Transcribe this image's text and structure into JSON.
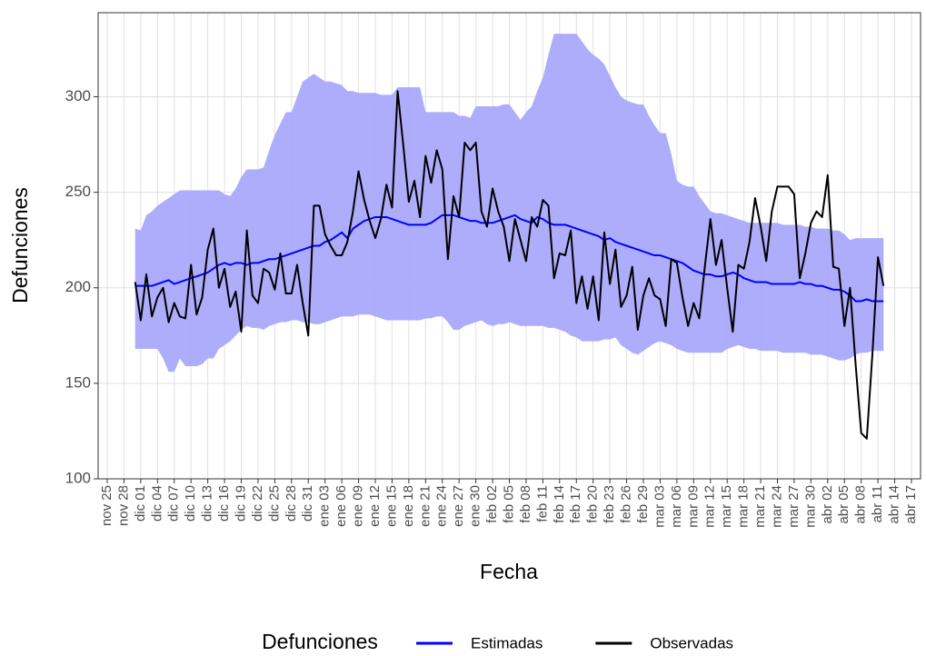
{
  "chart_data": {
    "type": "line",
    "y_label": "Defunciones",
    "x_label": "Fecha",
    "legend_title": "Defunciones",
    "legend_position": "bottom",
    "grid": true,
    "ylim": [
      100,
      344
    ],
    "yticks": [
      100,
      150,
      200,
      250,
      300
    ],
    "categories": [
      "nov 25",
      null,
      null,
      "nov 28",
      null,
      null,
      "dic 01",
      null,
      null,
      "dic 04",
      null,
      null,
      "dic 07",
      null,
      null,
      "dic 10",
      null,
      null,
      "dic 13",
      null,
      null,
      "dic 16",
      null,
      null,
      "dic 19",
      null,
      null,
      "dic 22",
      null,
      null,
      "dic 25",
      null,
      null,
      "dic 28",
      null,
      null,
      "dic 31",
      null,
      null,
      "ene 03",
      null,
      null,
      "ene 06",
      null,
      null,
      "ene 09",
      null,
      null,
      "ene 12",
      null,
      null,
      "ene 15",
      null,
      null,
      "ene 18",
      null,
      null,
      "ene 21",
      null,
      null,
      "ene 24",
      null,
      null,
      "ene 27",
      null,
      null,
      "ene 30",
      null,
      null,
      "feb 02",
      null,
      null,
      "feb 05",
      null,
      null,
      "feb 08",
      null,
      null,
      "feb 11",
      null,
      null,
      "feb 14",
      null,
      null,
      "feb 17",
      null,
      null,
      "feb 20",
      null,
      null,
      "feb 23",
      null,
      null,
      "feb 26",
      null,
      null,
      "feb 29",
      null,
      null,
      "mar 03",
      null,
      null,
      "mar 06",
      null,
      null,
      "mar 09",
      null,
      null,
      "mar 12",
      null,
      null,
      "mar 15",
      null,
      null,
      "mar 18",
      null,
      null,
      "mar 21",
      null,
      null,
      "mar 24",
      null,
      null,
      "mar 27",
      null,
      null,
      "mar 30",
      null,
      null,
      "abr 02",
      null,
      null,
      "abr 05",
      null,
      null,
      "abr 08",
      null,
      null,
      "abr 11",
      null,
      null,
      "abr 14",
      null,
      null,
      "abr 17"
    ],
    "series": [
      {
        "name": "Estimadas",
        "color": "#0000ff",
        "band_color": "#a9a9fb",
        "values": [
          null,
          null,
          null,
          null,
          null,
          201,
          201,
          201,
          201,
          202,
          203,
          204,
          202,
          203,
          204,
          205,
          206,
          207,
          208,
          210,
          212,
          213,
          212,
          213,
          213,
          212,
          213,
          213,
          214,
          215,
          215,
          216,
          217,
          218,
          219,
          220,
          221,
          222,
          222,
          224,
          225,
          227,
          229,
          226,
          231,
          233,
          235,
          236,
          237,
          237,
          237,
          236,
          235,
          234,
          233,
          233,
          233,
          233,
          234,
          236,
          238,
          238,
          238,
          237,
          236,
          235,
          235,
          234,
          234,
          234,
          235,
          236,
          237,
          238,
          236,
          235,
          234,
          237,
          236,
          234,
          233,
          233,
          233,
          232,
          231,
          230,
          229,
          228,
          227,
          225,
          226,
          224,
          223,
          222,
          221,
          220,
          219,
          218,
          217,
          217,
          216,
          215,
          214,
          213,
          211,
          209,
          208,
          207,
          207,
          206,
          206,
          207,
          208,
          207,
          205,
          204,
          203,
          203,
          203,
          202,
          202,
          202,
          202,
          202,
          203,
          202,
          202,
          201,
          201,
          200,
          199,
          199,
          198,
          196,
          193,
          193,
          194,
          193,
          193,
          193,
          null,
          null,
          null,
          null,
          null
        ],
        "upper": [
          null,
          null,
          null,
          null,
          null,
          231,
          230,
          238,
          240,
          243,
          245,
          247,
          249,
          251,
          251,
          251,
          251,
          251,
          251,
          251,
          251,
          249,
          248,
          252,
          258,
          262,
          262,
          262,
          263,
          272,
          280,
          286,
          292,
          292,
          300,
          308,
          310,
          312,
          310,
          308,
          308,
          307,
          306,
          303,
          303,
          302,
          302,
          302,
          302,
          301,
          301,
          301,
          305,
          305,
          305,
          305,
          305,
          292,
          292,
          292,
          292,
          292,
          292,
          290,
          290,
          289,
          295,
          295,
          295,
          295,
          295,
          296,
          296,
          292,
          288,
          292,
          295,
          303,
          310,
          322,
          333,
          333,
          333,
          333,
          333,
          329,
          325,
          322,
          320,
          317,
          311,
          305,
          300,
          298,
          297,
          296,
          296,
          290,
          285,
          281,
          281,
          270,
          256,
          254,
          253,
          253,
          248,
          244,
          240,
          239,
          239,
          238,
          237,
          236,
          235,
          234,
          234,
          234,
          234,
          234,
          234,
          233,
          233,
          233,
          233,
          232,
          232,
          231,
          231,
          231,
          230,
          230,
          228,
          225,
          226,
          226,
          226,
          226,
          226,
          226,
          null,
          null,
          null,
          null,
          null
        ],
        "lower": [
          null,
          null,
          null,
          null,
          null,
          168,
          168,
          168,
          168,
          168,
          163,
          156,
          156,
          163,
          159,
          159,
          159,
          160,
          163,
          163,
          168,
          170,
          172,
          175,
          178,
          180,
          179,
          179,
          178,
          180,
          181,
          182,
          182,
          183,
          183,
          182,
          182,
          181,
          181,
          182,
          183,
          184,
          185,
          185,
          185,
          186,
          186,
          186,
          185,
          184,
          183,
          183,
          183,
          183,
          183,
          183,
          183,
          184,
          184,
          185,
          185,
          182,
          178,
          178,
          180,
          181,
          182,
          183,
          181,
          180,
          181,
          181,
          182,
          181,
          180,
          180,
          180,
          180,
          180,
          179,
          179,
          178,
          177,
          175,
          174,
          172,
          172,
          172,
          172,
          173,
          173,
          174,
          170,
          168,
          166,
          165,
          167,
          169,
          171,
          172,
          171,
          170,
          168,
          167,
          166,
          166,
          166,
          166,
          166,
          166,
          166,
          168,
          169,
          170,
          169,
          168,
          168,
          167,
          167,
          167,
          167,
          166,
          166,
          166,
          166,
          166,
          165,
          165,
          165,
          164,
          163,
          162,
          162,
          163,
          165,
          166,
          166,
          167,
          167,
          167,
          null,
          null,
          null,
          null,
          null
        ]
      },
      {
        "name": "Observadas",
        "color": "#000000",
        "values": [
          null,
          null,
          null,
          null,
          null,
          203,
          183,
          207,
          185,
          195,
          200,
          182,
          192,
          185,
          184,
          212,
          186,
          195,
          220,
          231,
          200,
          210,
          190,
          198,
          177,
          230,
          196,
          192,
          210,
          208,
          199,
          218,
          197,
          197,
          212,
          192,
          175,
          243,
          243,
          228,
          222,
          217,
          217,
          224,
          240,
          261,
          246,
          235,
          226,
          236,
          254,
          242,
          303,
          275,
          245,
          256,
          237,
          269,
          255,
          272,
          262,
          215,
          248,
          237,
          276,
          272,
          276,
          240,
          232,
          252,
          240,
          232,
          214,
          236,
          225,
          214,
          237,
          232,
          246,
          243,
          205,
          218,
          217,
          230,
          192,
          206,
          189,
          206,
          183,
          229,
          202,
          220,
          190,
          196,
          211,
          178,
          196,
          205,
          196,
          194,
          180,
          215,
          213,
          195,
          180,
          192,
          184,
          211,
          236,
          212,
          225,
          200,
          177,
          212,
          210,
          224,
          247,
          232,
          214,
          240,
          253,
          253,
          253,
          249,
          205,
          218,
          234,
          240,
          237,
          259,
          211,
          210,
          180,
          200,
          160,
          124,
          121,
          165,
          216,
          201,
          null,
          null,
          null,
          null,
          null
        ]
      }
    ]
  }
}
